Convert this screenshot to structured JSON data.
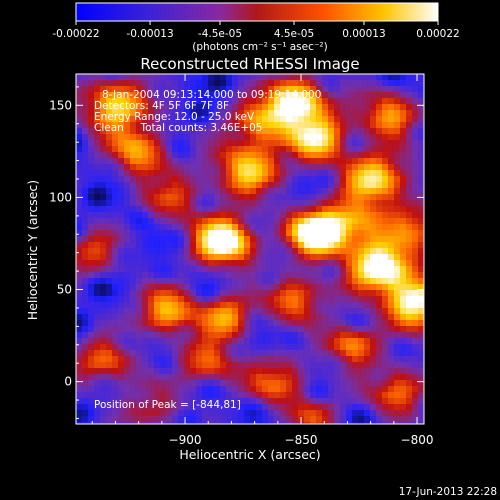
{
  "colorbar": {
    "tick_labels": [
      "-0.00022",
      "-0.00013",
      "-4.5e-05",
      "4.5e-05",
      "0.00013",
      "0.00022"
    ],
    "tick_values": [
      -0.00022,
      -0.00013,
      -4.5e-05,
      4.5e-05,
      0.00013,
      0.00022
    ],
    "range": [
      -0.00022,
      0.00022
    ],
    "unit_label": "(photons cm⁻² s⁻¹ asec⁻²)"
  },
  "chart_data": {
    "type": "heatmap",
    "title": "Reconstructed RHESSI Image",
    "xlabel": "Heliocentric X (arcsec)",
    "ylabel": "Heliocentric Y (arcsec)",
    "xlim": [
      -947,
      -797
    ],
    "ylim": [
      -23,
      167
    ],
    "xticks": [
      -900,
      -850,
      -800
    ],
    "xtick_labels": [
      "−900",
      "−850",
      "−800"
    ],
    "yticks": [
      0,
      50,
      100,
      150
    ],
    "ytick_labels": [
      "0",
      "50",
      "100",
      "150"
    ],
    "peak": [
      -844,
      81
    ],
    "colormap": [
      "#000000",
      "#2020ff",
      "#7030b0",
      "#c01010",
      "#ff6a00",
      "#ffd000",
      "#ffffff"
    ],
    "annotations": [
      "8-Jan-2004 09:13:14.000 to 09:19:14.000",
      "Detectors: 4F 5F 6F 7F 8F",
      "Energy Range: 12.0 - 25.0 keV",
      "Clean     Total counts: 3.46E+05",
      "Position of Peak = [-844,81]"
    ]
  },
  "footer": {
    "timestamp": "17-Jun-2013 22:28"
  }
}
